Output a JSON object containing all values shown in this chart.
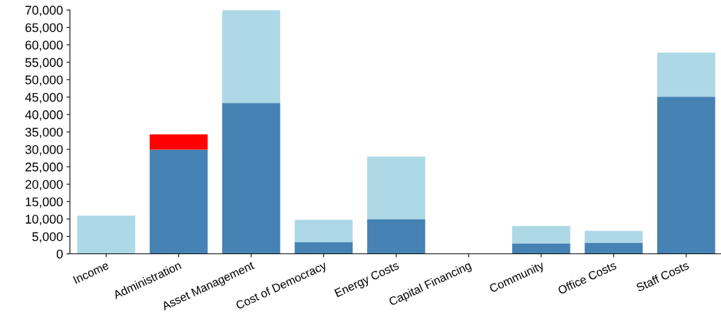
{
  "chart_data": {
    "type": "bar",
    "stacked": true,
    "categories": [
      "Income",
      "Administration",
      "Asset Management",
      "Cost of Democracy",
      "Energy Costs",
      "Capital Financing",
      "Community",
      "Office Costs",
      "Staff Costs"
    ],
    "series": [
      {
        "color": "#4682b4",
        "values": [
          0,
          29900,
          43300,
          3400,
          10000,
          0,
          3000,
          3200,
          45100
        ]
      },
      {
        "color": "#add8e6",
        "values": [
          11000,
          0,
          26700,
          6400,
          17900,
          0,
          5000,
          3400,
          12700
        ]
      },
      {
        "color": "#ff0000",
        "values": [
          0,
          4400,
          0,
          0,
          0,
          0,
          0,
          0,
          0
        ]
      }
    ],
    "ylim": [
      0,
      70000
    ],
    "yticks": [
      {
        "value": 0,
        "label": "0"
      },
      {
        "value": 5000,
        "label": "5,000"
      },
      {
        "value": 10000,
        "label": "10,000"
      },
      {
        "value": 15000,
        "label": "15,000"
      },
      {
        "value": 20000,
        "label": "20,000"
      },
      {
        "value": 25000,
        "label": "25,000"
      },
      {
        "value": 30000,
        "label": "30,000"
      },
      {
        "value": 35000,
        "label": "35,000"
      },
      {
        "value": 40000,
        "label": "40,000"
      },
      {
        "value": 45000,
        "label": "45,000"
      },
      {
        "value": 50000,
        "label": "50,000"
      },
      {
        "value": 55000,
        "label": "55,000"
      },
      {
        "value": 60000,
        "label": "60,000"
      },
      {
        "value": 65000,
        "label": "65,000"
      },
      {
        "value": 70000,
        "label": "70,000"
      }
    ],
    "grid": false
  }
}
